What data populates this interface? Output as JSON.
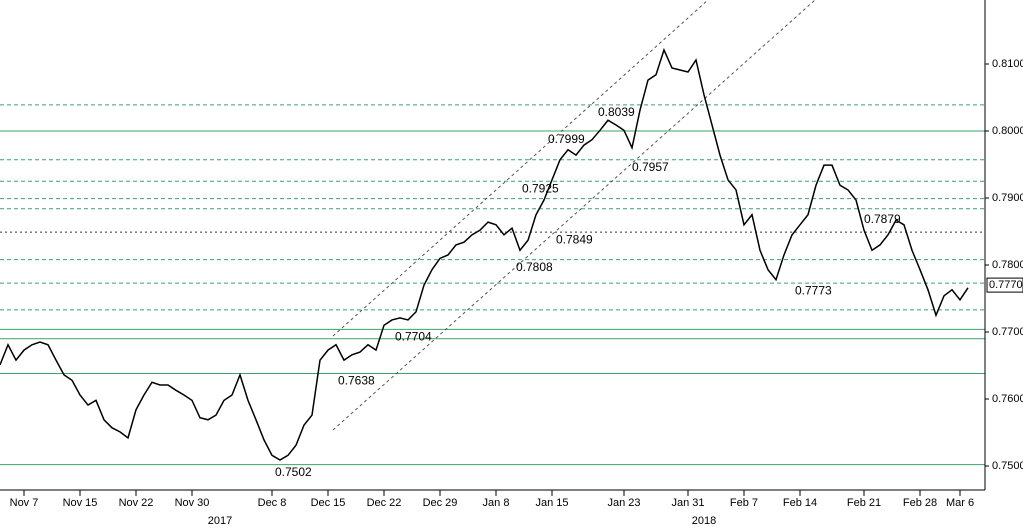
{
  "chart_data": {
    "type": "line",
    "color": "#000000",
    "categories": [
      null,
      null,
      null,
      "Nov 7",
      null,
      null,
      null,
      null,
      null,
      null,
      "Nov 15",
      null,
      null,
      null,
      null,
      null,
      null,
      "Nov 22",
      null,
      null,
      null,
      null,
      null,
      null,
      "Nov 30",
      null,
      null,
      null,
      null,
      null,
      null,
      null,
      null,
      null,
      "Dec 8",
      null,
      null,
      null,
      null,
      null,
      null,
      "Dec 15",
      null,
      null,
      null,
      null,
      null,
      null,
      "Dec 22",
      null,
      null,
      null,
      null,
      null,
      null,
      "Dec 29",
      null,
      null,
      null,
      null,
      null,
      null,
      "Jan 8",
      null,
      null,
      null,
      null,
      null,
      null,
      "Jan 15",
      null,
      null,
      null,
      null,
      null,
      null,
      null,
      null,
      "Jan 23",
      null,
      null,
      null,
      null,
      null,
      null,
      null,
      "Jan 31",
      null,
      null,
      null,
      null,
      null,
      null,
      "Feb 7",
      null,
      null,
      null,
      null,
      null,
      null,
      "Feb 14",
      null,
      null,
      null,
      null,
      null,
      null,
      null,
      "Feb 21",
      null,
      null,
      null,
      null,
      null,
      null,
      "Feb 28",
      null,
      null,
      null,
      null,
      "Mar 6",
      null
    ],
    "year_labels": [
      "2017",
      "2018"
    ],
    "values": [
      0.7651,
      0.7681,
      0.7658,
      0.7673,
      0.7681,
      0.7685,
      0.7681,
      0.7658,
      0.7636,
      0.7628,
      0.7606,
      0.7591,
      0.7598,
      0.7569,
      0.7557,
      0.7551,
      0.7542,
      0.7584,
      0.7606,
      0.7625,
      0.7621,
      0.7621,
      0.7613,
      0.7606,
      0.7598,
      0.7572,
      0.7569,
      0.7576,
      0.7598,
      0.7606,
      0.7636,
      0.7598,
      0.7569,
      0.7539,
      0.7516,
      0.7509,
      0.7516,
      0.7531,
      0.7561,
      0.7576,
      0.7658,
      0.7673,
      0.7681,
      0.7658,
      0.7666,
      0.767,
      0.7681,
      0.7673,
      0.771,
      0.7718,
      0.7721,
      0.7718,
      0.773,
      0.777,
      0.7793,
      0.781,
      0.7815,
      0.783,
      0.7834,
      0.7845,
      0.7852,
      0.7864,
      0.786,
      0.7845,
      0.7855,
      0.7822,
      0.7837,
      0.7875,
      0.7897,
      0.7927,
      0.7957,
      0.7972,
      0.7964,
      0.7979,
      0.7987,
      0.8001,
      0.8016,
      0.8009,
      0.8001,
      0.7975,
      0.8031,
      0.8076,
      0.8084,
      0.8121,
      0.8094,
      0.8091,
      0.8088,
      0.8106,
      0.8054,
      0.8009,
      0.7964,
      0.7927,
      0.7912,
      0.786,
      0.7875,
      0.7822,
      0.7793,
      0.7778,
      0.7815,
      0.7845,
      0.786,
      0.7875,
      0.7919,
      0.7949,
      0.7949,
      0.7919,
      0.7912,
      0.7897,
      0.7852,
      0.7822,
      0.783,
      0.7845,
      0.7867,
      0.786,
      0.7822,
      0.7793,
      0.7763,
      0.7725,
      0.7754,
      0.7763,
      0.7748,
      0.7766
    ],
    "ylim": [
      0.74672,
      0.81955
    ],
    "yticks": [
      {
        "value": 0.75,
        "label": "0.7500"
      },
      {
        "value": 0.76,
        "label": "0.7600"
      },
      {
        "value": 0.77,
        "label": "0.7700"
      },
      {
        "value": 0.78,
        "label": "0.7800"
      },
      {
        "value": 0.79,
        "label": "0.7900"
      },
      {
        "value": 0.8,
        "label": "0.8000"
      },
      {
        "value": 0.81,
        "label": "0.8100"
      }
    ],
    "last_price": {
      "value": 0.777,
      "label": "0.7770"
    },
    "levels": [
      {
        "value": 0.8039,
        "style": "dashed"
      },
      {
        "value": 0.8,
        "style": "solid"
      },
      {
        "value": 0.7957,
        "style": "dashed"
      },
      {
        "value": 0.7925,
        "style": "dashed"
      },
      {
        "value": 0.7899,
        "style": "dashed"
      },
      {
        "value": 0.7884,
        "style": "dashed"
      },
      {
        "value": 0.7849,
        "style": "dotted"
      },
      {
        "value": 0.7808,
        "style": "dashed"
      },
      {
        "value": 0.7773,
        "style": "dashed"
      },
      {
        "value": 0.7733,
        "style": "dashed"
      },
      {
        "value": 0.7704,
        "style": "solid"
      },
      {
        "value": 0.769,
        "style": "solid"
      },
      {
        "value": 0.7638,
        "style": "solid"
      },
      {
        "value": 0.7502,
        "style": "solid"
      }
    ],
    "annotations": [
      {
        "value": 0.7502,
        "label": "0.7502"
      },
      {
        "value": 0.7638,
        "label": "0.7638"
      },
      {
        "value": 0.7704,
        "label": "0.7704"
      },
      {
        "value": 0.7808,
        "label": "0.7808"
      },
      {
        "value": 0.7849,
        "label": "0.7849"
      },
      {
        "value": 0.7925,
        "label": "0.7925"
      },
      {
        "value": 0.7957,
        "label": "0.7957"
      },
      {
        "value": 0.7999,
        "label": "0.7999"
      },
      {
        "value": 0.8039,
        "label": "0.8039"
      },
      {
        "value": 0.7773,
        "label": "0.7773"
      },
      {
        "value": 0.7879,
        "label": "0.7879"
      }
    ]
  }
}
